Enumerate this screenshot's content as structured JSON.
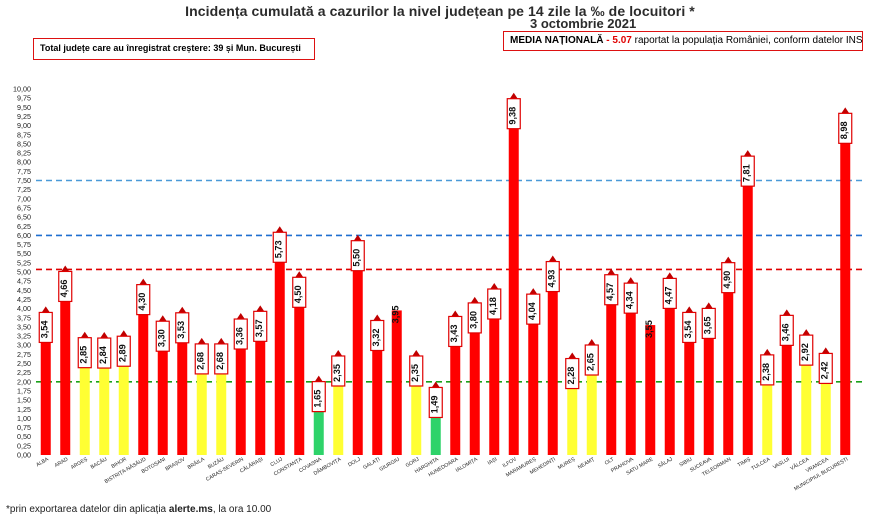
{
  "header": {
    "title": "Incidența cumulată a cazurilor la nivel județean pe 14 zile la ‰ de locuitori *",
    "date": "3 octombrie 2021"
  },
  "info_left": "Total județe care au înregistrat creștere:  39 și Mun. București",
  "info_right": {
    "label": "MEDIA NAȚIONALĂ",
    "dash": " - ",
    "value": "5.07",
    "rest": " raportat la populația României, conform datelor INS"
  },
  "footnote": {
    "prefix": "*prin exportarea datelor din aplicația ",
    "bold": "alerte.ms",
    "suffix": ", la ora 10.00"
  },
  "chart_data": {
    "type": "bar",
    "title": "Incidența cumulată a cazurilor la nivel județean pe 14 zile la ‰ de locuitori *",
    "ylim": [
      0,
      10
    ],
    "yticks": [
      "0,00",
      "0,25",
      "0,50",
      "0,75",
      "1,00",
      "1,25",
      "1,50",
      "1,75",
      "2,00",
      "2,25",
      "2,50",
      "2,75",
      "3,00",
      "3,25",
      "3,50",
      "3,75",
      "4,00",
      "4,25",
      "4,50",
      "4,75",
      "5,00",
      "5,25",
      "5,50",
      "5,75",
      "6,00",
      "6,25",
      "6,50",
      "6,75",
      "7,00",
      "7,25",
      "7,50",
      "7,75",
      "8,00",
      "8,25",
      "8,50",
      "8,75",
      "9,00",
      "9,25",
      "9,50",
      "9,75",
      "10,00"
    ],
    "categories": [
      "ALBA",
      "ARAD",
      "ARGEȘ",
      "BACĂU",
      "BIHOR",
      "BISTRIȚA-NĂSĂUD",
      "BOTOȘANI",
      "BRAȘOV",
      "BRĂILA",
      "BUZĂU",
      "CARAȘ-SEVERIN",
      "CĂLĂRAȘI",
      "CLUJ",
      "CONSTANȚA",
      "COVASNA",
      "DÂMBOVIȚA",
      "DOLJ",
      "GALAȚI",
      "GIURGIU",
      "GORJ",
      "HARGHITA",
      "HUNEDOARA",
      "IALOMIȚA",
      "IAȘI",
      "ILFOV",
      "MARAMUREȘ",
      "MEHEDINȚI",
      "MUREȘ",
      "NEAMȚ",
      "OLT",
      "PRAHOVA",
      "SATU MARE",
      "SĂLAJ",
      "SIBIU",
      "SUCEAVA",
      "TELEORMAN",
      "TIMIȘ",
      "TULCEA",
      "VASLUI",
      "VÂLCEA",
      "VRANCEA",
      "MUNICIPIUL BUCUREȘTI"
    ],
    "values": [
      3.54,
      4.66,
      2.85,
      2.84,
      2.89,
      4.3,
      3.3,
      3.53,
      2.68,
      2.68,
      3.36,
      3.57,
      5.73,
      4.5,
      1.65,
      2.35,
      5.5,
      3.32,
      3.95,
      2.35,
      1.49,
      3.43,
      3.8,
      4.18,
      9.38,
      4.04,
      4.93,
      2.28,
      2.65,
      4.57,
      4.34,
      3.55,
      4.47,
      3.54,
      3.65,
      4.9,
      7.81,
      2.38,
      3.46,
      2.92,
      2.42,
      8.98
    ],
    "labels": [
      "3,54",
      "4,66",
      "2,85",
      "2,84",
      "2,89",
      "4,30",
      "3,30",
      "3,53",
      "2,68",
      "2,68",
      "3,36",
      "3,57",
      "5,73",
      "4,50",
      "1,65",
      "2,35",
      "5,50",
      "3,32",
      "3,95",
      "2,35",
      "1,49",
      "3,43",
      "3,80",
      "4,18",
      "9,38",
      "4,04",
      "4,93",
      "2,28",
      "2,65",
      "4,57",
      "4,34",
      "3,55",
      "4,47",
      "3,54",
      "3,65",
      "4,90",
      "7,81",
      "2,38",
      "3,46",
      "2,92",
      "2,42",
      "8,98"
    ],
    "colors": [
      "red",
      "red",
      "yellow",
      "yellow",
      "yellow",
      "red",
      "red",
      "red",
      "yellow",
      "yellow",
      "red",
      "red",
      "red",
      "red",
      "green",
      "yellow",
      "red",
      "red",
      "red",
      "yellow",
      "green",
      "red",
      "red",
      "red",
      "red",
      "red",
      "red",
      "yellow",
      "yellow",
      "red",
      "red",
      "red",
      "red",
      "red",
      "red",
      "red",
      "red",
      "yellow",
      "red",
      "yellow",
      "yellow",
      "red"
    ],
    "arrow": [
      true,
      true,
      true,
      true,
      true,
      true,
      true,
      true,
      true,
      true,
      true,
      true,
      true,
      true,
      true,
      true,
      true,
      true,
      false,
      true,
      true,
      true,
      true,
      true,
      true,
      true,
      true,
      true,
      true,
      true,
      true,
      false,
      true,
      true,
      true,
      true,
      true,
      true,
      true,
      true,
      true,
      true
    ],
    "boxed": [
      true,
      true,
      true,
      true,
      true,
      true,
      true,
      true,
      true,
      true,
      true,
      true,
      true,
      true,
      true,
      true,
      true,
      true,
      false,
      true,
      true,
      true,
      true,
      true,
      true,
      true,
      true,
      true,
      true,
      true,
      true,
      false,
      true,
      true,
      true,
      true,
      true,
      true,
      true,
      true,
      true,
      true
    ],
    "reference_lines": [
      {
        "value": 7.5,
        "color": "#4a9ad8",
        "style": "dashed"
      },
      {
        "value": 6.0,
        "color": "#1f6fd0",
        "style": "dashed"
      },
      {
        "value": 5.07,
        "color": "#e00000",
        "style": "dashed"
      },
      {
        "value": 2.0,
        "color": "#1aa11a",
        "style": "dashed"
      }
    ],
    "palette": {
      "red": "#ff0000",
      "yellow": "#ffff33",
      "green": "#2ed36a",
      "arrow": "#c00000",
      "label_border": "#e00000"
    }
  }
}
